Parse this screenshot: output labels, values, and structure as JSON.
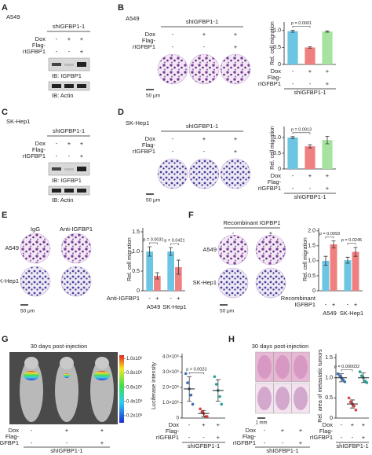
{
  "figure": {
    "A": {
      "letter": "A",
      "cell": "A549",
      "construct": "shIGFBP1-1",
      "treatments": [
        {
          "label": [
            "Dox"
          ],
          "signs": [
            "-",
            "+",
            "+"
          ]
        },
        {
          "label": [
            "Flag-",
            "rIGFBP1"
          ],
          "signs": [
            "-",
            "-",
            "+"
          ]
        }
      ],
      "blots": [
        "IB: IGFBP1",
        "IB: Actin"
      ]
    },
    "B": {
      "letter": "B",
      "cell": "A549",
      "construct": "shIGFBP1-1",
      "treatments": [
        {
          "label": [
            "Dox"
          ],
          "signs": [
            "-",
            "+",
            "+"
          ]
        },
        {
          "label": [
            "Flag-",
            "rIGFBP1"
          ],
          "signs": [
            "-",
            "-",
            "+"
          ]
        }
      ],
      "scale": "50 μm"
    },
    "C": {
      "letter": "C",
      "cell": "SK-Hep1",
      "construct": "shIGFBP1-1",
      "treatments": [
        {
          "label": [
            "Dox"
          ],
          "signs": [
            "-",
            "+",
            "+"
          ]
        },
        {
          "label": [
            "Flag-",
            "rIGFBP1"
          ],
          "signs": [
            "-",
            "-",
            "+"
          ]
        }
      ],
      "blots": [
        "IB: IGFBP1",
        "IB: Actin"
      ]
    },
    "D": {
      "letter": "D",
      "cell": "SK-Hep1",
      "construct": "shIGFBP1-1",
      "treatments": [
        {
          "label": [
            "Dox"
          ],
          "signs": [
            "-",
            "+",
            "+"
          ]
        },
        {
          "label": [
            "Flag-",
            "rIGFBP1"
          ],
          "signs": [
            "-",
            "-",
            "+"
          ]
        }
      ],
      "scale": "50 μm"
    },
    "E": {
      "letter": "E",
      "columns": [
        "IgG",
        "Anti-IGFBP1"
      ],
      "rows": [
        "A549",
        "SK-Hep1"
      ],
      "scale": "50 μm"
    },
    "F": {
      "letter": "F",
      "header": "Recombinant IGFBP1",
      "signs": [
        "-",
        "+"
      ],
      "rows": [
        "A549",
        "SK-Hep1"
      ],
      "scale": "50 μm"
    },
    "G": {
      "letter": "G",
      "caption": "30 days post-injection",
      "construct": "shIGFBP1-1",
      "colorbar_lim": [
        100000,
        1050000
      ],
      "colorbar_ticks": [
        {
          "value": 1000000,
          "label": "1.0x10⁶"
        },
        {
          "value": 800000,
          "label": "0.8x10⁶"
        },
        {
          "value": 600000,
          "label": "0.6x10⁶"
        },
        {
          "value": 400000,
          "label": "0.4x10⁶"
        },
        {
          "value": 200000,
          "label": "0.2x10⁶"
        }
      ],
      "treatments": [
        {
          "label": [
            "Dox"
          ],
          "signs": [
            "-",
            "+",
            "+"
          ]
        },
        {
          "label": [
            "Flag-",
            "rIGFBP1"
          ],
          "signs": [
            "-",
            "-",
            "+"
          ]
        }
      ]
    },
    "H": {
      "letter": "H",
      "caption": "30 days post-injection",
      "construct": "shIGFBP1-1",
      "scale": "1 mm",
      "treatments": [
        {
          "label": [
            "Dox"
          ],
          "signs": [
            "-",
            "+",
            "+"
          ]
        },
        {
          "label": [
            "Flag-",
            "rIGFBP1"
          ],
          "signs": [
            "-",
            "-",
            "+"
          ]
        }
      ]
    }
  },
  "chart_data": [
    {
      "type": "bar",
      "ylabel": "Rel. cell migration",
      "values": [
        0.98,
        0.5,
        0.97
      ],
      "errors": [
        0.03,
        0.02,
        0.02
      ],
      "colors": [
        "#6cc5e3",
        "#f08080",
        "#a6e3a1"
      ],
      "ylim": [
        0,
        1.25
      ],
      "yticks": [
        0,
        0.5,
        {
          "value": 1,
          "label": "1.0"
        }
      ],
      "annotations": [
        "p = 0.0001"
      ],
      "construct": "shIGFBP1-1",
      "treatments": [
        {
          "label": [
            "Dox"
          ],
          "signs": [
            "-",
            "+",
            "+"
          ]
        },
        {
          "label": [
            "Flag-",
            "rIGFBP1"
          ],
          "signs": [
            "-",
            "-",
            "+"
          ]
        }
      ]
    },
    {
      "type": "bar",
      "ylabel": "Rel. cell migration",
      "values": [
        1.0,
        0.72,
        0.92
      ],
      "errors": [
        0.03,
        0.05,
        0.12
      ],
      "colors": [
        "#6cc5e3",
        "#f08080",
        "#a6e3a1"
      ],
      "ylim": [
        0,
        1.35
      ],
      "yticks": [
        0,
        0.5,
        {
          "value": 1,
          "label": "1.0"
        }
      ],
      "annotations": [
        "p = 0.0013"
      ],
      "construct": "shIGFBP1-1",
      "treatments": [
        {
          "label": [
            "Dox"
          ],
          "signs": [
            "-",
            "+",
            "+"
          ]
        },
        {
          "label": [
            "Flag-",
            "rIGFBP1"
          ],
          "signs": [
            "-",
            "-",
            "+"
          ]
        }
      ]
    },
    {
      "type": "bar",
      "ylabel": "Rel. cell migration",
      "values": [
        1.0,
        0.38,
        1.0,
        0.6
      ],
      "errors": [
        0.12,
        0.08,
        0.1,
        0.18
      ],
      "colors": [
        "#6cc5e3",
        "#f08080",
        "#6cc5e3",
        "#f08080"
      ],
      "ylim": [
        0,
        1.6
      ],
      "yticks": [
        0,
        0.5,
        {
          "value": 1,
          "label": "1.0"
        },
        1.5
      ],
      "annotations": [
        "p = 0.0031",
        "p = 0.0421"
      ],
      "groups": [
        "A549",
        "SK-Hep1"
      ],
      "treatments": [
        {
          "label": [
            "Anti-IGFBP1"
          ],
          "signs": [
            "-",
            "+",
            "-",
            "+"
          ]
        }
      ]
    },
    {
      "type": "bar",
      "ylabel": "Rel. cell migration",
      "values": [
        1.0,
        1.55,
        1.02,
        1.3
      ],
      "errors": [
        0.15,
        0.12,
        0.1,
        0.15
      ],
      "colors": [
        "#6cc5e3",
        "#f08080",
        "#6cc5e3",
        "#f08080"
      ],
      "ylim": [
        0,
        2.1
      ],
      "yticks": [
        0,
        0.5,
        {
          "value": 1,
          "label": "1.0"
        },
        1.5,
        {
          "value": 2,
          "label": "2.0"
        }
      ],
      "annotations": [
        "p = 0.0093",
        "p = 0.0245"
      ],
      "groups": [
        "A549",
        "SK-Hep1"
      ],
      "treatments": [
        {
          "label": [
            "Recombinant",
            "IGFBP1"
          ],
          "signs": [
            "-",
            "+",
            "-",
            "+"
          ]
        }
      ]
    },
    {
      "type": "dot",
      "ylabel": "Luciferase intensity",
      "values": [
        1900000,
        300000,
        1800000
      ],
      "errors": [
        800000,
        200000,
        700000
      ],
      "points": [
        [
          2900000,
          2300000,
          1900000,
          1500000,
          900000
        ],
        [
          600000,
          400000,
          300000,
          100000,
          100000
        ],
        [
          2700000,
          2200000,
          1800000,
          1400000,
          900000
        ]
      ],
      "colors": [
        "#3a6fb5",
        "#e03b3b",
        "#2aa198"
      ],
      "ylim": [
        0,
        4200000
      ],
      "yticks": [
        0,
        {
          "value": 1000000,
          "label": "1.0×10⁶"
        },
        {
          "value": 2000000,
          "label": "2.0×10⁶"
        },
        {
          "value": 3000000,
          "label": "3.0×10⁶"
        },
        {
          "value": 4000000,
          "label": "4.0×10⁶"
        }
      ],
      "annotations": [
        "p = 0.0023"
      ],
      "construct": "shIGFBP1-1",
      "treatments": [
        {
          "label": [
            "Dox"
          ],
          "signs": [
            "-",
            "+",
            "+"
          ]
        },
        {
          "label": [
            "Flag-",
            "rIGFBP1"
          ],
          "signs": [
            "-",
            "-",
            "+"
          ]
        }
      ]
    },
    {
      "type": "dot",
      "ylabel": "Rel. area of metastatic tumors",
      "values": [
        1.0,
        0.35,
        1.0
      ],
      "errors": [
        0.1,
        0.1,
        0.12
      ],
      "points": [
        [
          1.1,
          1.05,
          1.0,
          0.95,
          0.9
        ],
        [
          0.5,
          0.4,
          0.35,
          0.3,
          0.2
        ],
        [
          1.15,
          1.05,
          1.0,
          0.92,
          0.88
        ]
      ],
      "colors": [
        "#3a6fb5",
        "#e03b3b",
        "#2aa198"
      ],
      "ylim": [
        0,
        1.6
      ],
      "yticks": [
        0,
        0.5,
        {
          "value": 1,
          "label": "1.0"
        },
        1.5
      ],
      "annotations": [
        "p = 0.000032"
      ],
      "construct": "shIGFBP1-1",
      "treatments": [
        {
          "label": [
            "Dox"
          ],
          "signs": [
            "-",
            "+",
            "+"
          ]
        },
        {
          "label": [
            "Flag-",
            "rIGFBP1"
          ],
          "signs": [
            "-",
            "-",
            "+"
          ]
        }
      ]
    }
  ]
}
